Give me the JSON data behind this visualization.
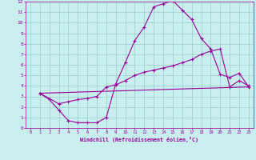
{
  "xlabel": "Windchill (Refroidissement éolien,°C)",
  "xlim": [
    -0.5,
    23.5
  ],
  "ylim": [
    0,
    12
  ],
  "xticks": [
    0,
    1,
    2,
    3,
    4,
    5,
    6,
    7,
    8,
    9,
    10,
    11,
    12,
    13,
    14,
    15,
    16,
    17,
    18,
    19,
    20,
    21,
    22,
    23
  ],
  "yticks": [
    0,
    1,
    2,
    3,
    4,
    5,
    6,
    7,
    8,
    9,
    10,
    11,
    12
  ],
  "bg_color": "#c8eeee",
  "line_color": "#990099",
  "grid_color": "#99cccc",
  "line1_x": [
    1,
    2,
    3,
    4,
    5,
    6,
    7,
    8,
    9,
    10,
    11,
    12,
    13,
    14,
    15,
    16,
    17,
    18,
    19,
    20,
    21,
    22,
    23
  ],
  "line1_y": [
    3.3,
    2.7,
    1.7,
    0.7,
    0.5,
    0.5,
    0.5,
    1.0,
    4.2,
    6.2,
    8.3,
    9.6,
    11.5,
    11.8,
    12.1,
    11.2,
    10.3,
    8.5,
    7.5,
    5.1,
    4.8,
    5.2,
    3.9
  ],
  "line2_x": [
    1,
    3,
    4,
    5,
    6,
    7,
    8,
    9,
    10,
    11,
    12,
    13,
    14,
    15,
    16,
    17,
    18,
    19,
    20,
    21,
    22,
    23
  ],
  "line2_y": [
    3.3,
    2.3,
    2.5,
    2.7,
    2.8,
    3.0,
    3.9,
    4.1,
    4.5,
    5.0,
    5.3,
    5.5,
    5.7,
    5.9,
    6.2,
    6.5,
    7.0,
    7.3,
    7.5,
    3.9,
    4.5,
    4.0
  ],
  "line3_x": [
    1,
    23
  ],
  "line3_y": [
    3.3,
    3.9
  ]
}
